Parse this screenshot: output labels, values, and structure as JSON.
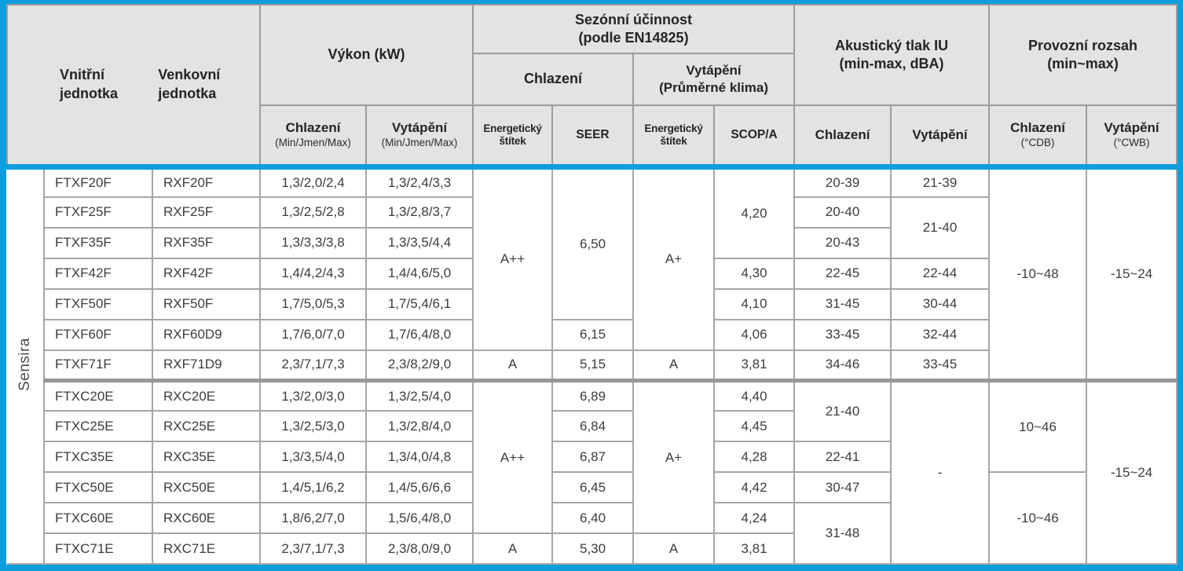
{
  "colors": {
    "accent_blue": "#0d9edd",
    "header_bg": "#e3e3e4",
    "header_border": "#9b9b9d",
    "cell_border": "#a5a5a7",
    "group_divider": "#97979a"
  },
  "series_label": "Sensira",
  "header": {
    "indoor": "Vnitřní jednotka",
    "outdoor": "Venkovní jednotka",
    "power": "Výkon (kW)",
    "power_cooling": "Chlazení",
    "power_cooling_sub": "(Min/Jmen/Max)",
    "power_heating": "Vytápění",
    "power_heating_sub": "(Min/Jmen/Max)",
    "seasonal": "Sezónní účinnost",
    "seasonal_sub": "(podle EN14825)",
    "seasonal_cooling": "Chlazení",
    "seasonal_heating": "Vytápění",
    "seasonal_heating_sub": "(Průměrné klima)",
    "energy_label_cooling": "Energetický štítek",
    "seer": "SEER",
    "energy_label_heating": "Energetický štítek",
    "scop": "SCOP/A",
    "acoustic": "Akustický tlak IU",
    "acoustic_sub": "(min-max, dBA)",
    "acoustic_cooling": "Chlazení",
    "acoustic_heating": "Vytápění",
    "range": "Provozní rozsah",
    "range_sub": "(min~max)",
    "range_cooling": "Chlazení",
    "range_cooling_sub": "(°CDB)",
    "range_heating": "Vytápění",
    "range_heating_sub": "(°CWB)"
  },
  "rows": [
    {
      "cells": [
        {
          "v": "Sensira",
          "rs": 13,
          "cls": "sensira",
          "name": "series-label",
          "vertical": true
        },
        {
          "v": "FTXF20F",
          "cls": "model"
        },
        {
          "v": "RXF20F",
          "cls": "model"
        },
        {
          "v": "1,3/2,0/2,4"
        },
        {
          "v": "1,3/2,4/3,3"
        },
        {
          "v": "A++",
          "rs": 6
        },
        {
          "v": "6,50",
          "rs": 5
        },
        {
          "v": "A+",
          "rs": 6
        },
        {
          "v": "4,20",
          "rs": 3
        },
        {
          "v": "20-39"
        },
        {
          "v": "21-39"
        },
        {
          "v": "-10~48",
          "rs": 7,
          "cls": "group-end"
        },
        {
          "v": "-15~24",
          "rs": 7,
          "cls": "group-end"
        }
      ]
    },
    {
      "cells": [
        {
          "v": "FTXF25F",
          "cls": "model"
        },
        {
          "v": "RXF25F",
          "cls": "model"
        },
        {
          "v": "1,3/2,5/2,8"
        },
        {
          "v": "1,3/2,8/3,7"
        },
        {
          "v": "20-40"
        },
        {
          "v": "21-40",
          "rs": 2
        }
      ]
    },
    {
      "cells": [
        {
          "v": "FTXF35F",
          "cls": "model"
        },
        {
          "v": "RXF35F",
          "cls": "model"
        },
        {
          "v": "1,3/3,3/3,8"
        },
        {
          "v": "1,3/3,5/4,4"
        },
        {
          "v": "20-43"
        }
      ]
    },
    {
      "cells": [
        {
          "v": "FTXF42F",
          "cls": "model"
        },
        {
          "v": "RXF42F",
          "cls": "model"
        },
        {
          "v": "1,4/4,2/4,3"
        },
        {
          "v": "1,4/4,6/5,0"
        },
        {
          "v": "4,30"
        },
        {
          "v": "22-45"
        },
        {
          "v": "22-44"
        }
      ]
    },
    {
      "cells": [
        {
          "v": "FTXF50F",
          "cls": "model"
        },
        {
          "v": "RXF50F",
          "cls": "model"
        },
        {
          "v": "1,7/5,0/5,3"
        },
        {
          "v": "1,7/5,4/6,1"
        },
        {
          "v": "4,10"
        },
        {
          "v": "31-45"
        },
        {
          "v": "30-44"
        }
      ]
    },
    {
      "cells": [
        {
          "v": "FTXF60F",
          "cls": "model"
        },
        {
          "v": "RXF60D9",
          "cls": "model"
        },
        {
          "v": "1,7/6,0/7,0"
        },
        {
          "v": "1,7/6,4/8,0"
        },
        {
          "v": "6,15"
        },
        {
          "v": "4,06"
        },
        {
          "v": "33-45"
        },
        {
          "v": "32-44"
        }
      ]
    },
    {
      "cls": "group-end",
      "cells": [
        {
          "v": "FTXF71F",
          "cls": "model"
        },
        {
          "v": "RXF71D9",
          "cls": "model"
        },
        {
          "v": "2,3/7,1/7,3"
        },
        {
          "v": "2,3/8,2/9,0"
        },
        {
          "v": "A"
        },
        {
          "v": "5,15"
        },
        {
          "v": "A"
        },
        {
          "v": "3,81"
        },
        {
          "v": "34-46"
        },
        {
          "v": "33-45"
        }
      ]
    },
    {
      "cells": [
        {
          "v": "FTXC20E",
          "cls": "model"
        },
        {
          "v": "RXC20E",
          "cls": "model"
        },
        {
          "v": "1,3/2,0/3,0"
        },
        {
          "v": "1,3/2,5/4,0"
        },
        {
          "v": "A++",
          "rs": 5
        },
        {
          "v": "6,89"
        },
        {
          "v": "A+",
          "rs": 5
        },
        {
          "v": "4,40"
        },
        {
          "v": "21-40",
          "rs": 2
        },
        {
          "v": "-",
          "rs": 6
        },
        {
          "v": "10~46",
          "rs": 3
        },
        {
          "v": "-15~24",
          "rs": 6
        }
      ]
    },
    {
      "cells": [
        {
          "v": "FTXC25E",
          "cls": "model"
        },
        {
          "v": "RXC25E",
          "cls": "model"
        },
        {
          "v": "1,3/2,5/3,0"
        },
        {
          "v": "1,3/2,8/4,0"
        },
        {
          "v": "6,84"
        },
        {
          "v": "4,45"
        }
      ]
    },
    {
      "cells": [
        {
          "v": "FTXC35E",
          "cls": "model"
        },
        {
          "v": "RXC35E",
          "cls": "model"
        },
        {
          "v": "1,3/3,5/4,0"
        },
        {
          "v": "1,3/4,0/4,8"
        },
        {
          "v": "6,87"
        },
        {
          "v": "4,28"
        },
        {
          "v": "22-41"
        }
      ]
    },
    {
      "cells": [
        {
          "v": "FTXC50E",
          "cls": "model"
        },
        {
          "v": "RXC50E",
          "cls": "model"
        },
        {
          "v": "1,4/5,1/6,2"
        },
        {
          "v": "1,4/5,6/6,6"
        },
        {
          "v": "6,45"
        },
        {
          "v": "4,42"
        },
        {
          "v": "30-47"
        },
        {
          "v": "-10~46",
          "rs": 3
        }
      ]
    },
    {
      "cells": [
        {
          "v": "FTXC60E",
          "cls": "model"
        },
        {
          "v": "RXC60E",
          "cls": "model"
        },
        {
          "v": "1,8/6,2/7,0"
        },
        {
          "v": "1,5/6,4/8,0"
        },
        {
          "v": "6,40"
        },
        {
          "v": "4,24"
        },
        {
          "v": "31-48",
          "rs": 2
        }
      ]
    },
    {
      "cells": [
        {
          "v": "FTXC71E",
          "cls": "model"
        },
        {
          "v": "RXC71E",
          "cls": "model"
        },
        {
          "v": "2,3/7,1/7,3"
        },
        {
          "v": "2,3/8,0/9,0"
        },
        {
          "v": "A"
        },
        {
          "v": "5,30"
        },
        {
          "v": "A"
        },
        {
          "v": "3,81"
        }
      ]
    }
  ]
}
